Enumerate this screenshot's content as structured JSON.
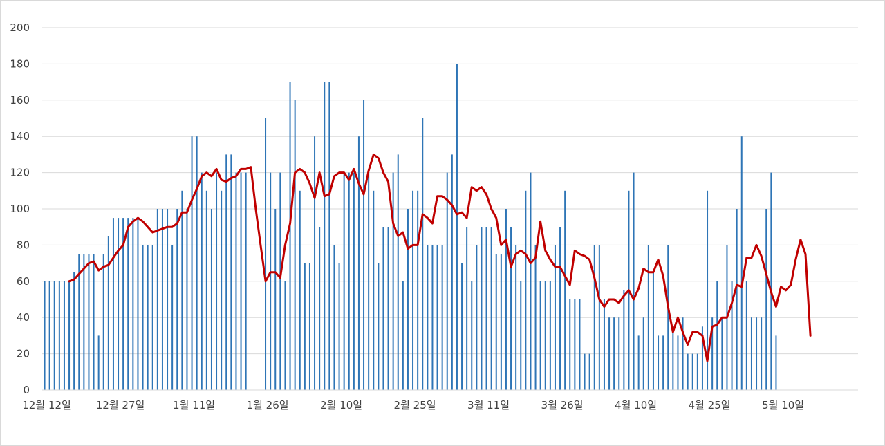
{
  "chart_data": {
    "type": "bar",
    "title": "",
    "xlabel": "",
    "ylabel": "",
    "ylim": [
      0,
      200
    ],
    "yticks": [
      0,
      20,
      40,
      60,
      80,
      100,
      120,
      140,
      160,
      180,
      200
    ],
    "grid": true,
    "legend": "none",
    "x_tick_labels": [
      "12월 12일",
      "12월 27일",
      "1월 11일",
      "1월 26일",
      "2월 10일",
      "2월 25일",
      "3월 11일",
      "3월 26일",
      "4월 10일",
      "4월 25일",
      "5월 10일"
    ],
    "day_count": 156,
    "x_tick_days": [
      0,
      15,
      30,
      45,
      60,
      75,
      90,
      105,
      120,
      135,
      150
    ],
    "series": [
      {
        "kind": "bar",
        "color": "#2e75b6",
        "values": [
          60,
          60,
          60,
          60,
          60,
          60,
          65,
          75,
          75,
          75,
          75,
          30,
          75,
          85,
          95,
          95,
          95,
          95,
          95,
          95,
          80,
          80,
          80,
          100,
          100,
          100,
          80,
          100,
          110,
          100,
          140,
          140,
          120,
          110,
          100,
          120,
          110,
          130,
          130,
          120,
          120,
          120,
          0,
          0,
          0,
          150,
          120,
          100,
          120,
          60,
          170,
          160,
          110,
          70,
          70,
          140,
          90,
          170,
          170,
          80,
          70,
          120,
          120,
          120,
          140,
          160,
          120,
          110,
          70,
          90,
          90,
          120,
          130,
          60,
          100,
          110,
          110,
          150,
          80,
          80,
          80,
          80,
          120,
          130,
          180,
          70,
          90,
          60,
          80,
          90,
          90,
          90,
          75,
          75,
          100,
          90,
          80,
          60,
          110,
          120,
          80,
          60,
          60,
          60,
          80,
          90,
          110,
          50,
          50,
          50,
          20,
          20,
          80,
          80,
          50,
          40,
          40,
          40,
          55,
          110,
          120,
          30,
          40,
          80,
          65,
          30,
          30,
          80,
          35,
          30,
          40,
          20,
          20,
          20,
          35,
          110,
          40,
          60,
          40,
          80,
          60,
          100,
          140,
          60,
          40,
          40,
          40,
          100,
          120,
          30,
          0,
          0,
          0,
          0,
          0,
          0
        ]
      },
      {
        "kind": "line",
        "color": "#c00000",
        "start_day": 5,
        "values": [
          60,
          61,
          64,
          67,
          70,
          71,
          66,
          68,
          69,
          73,
          77,
          80,
          90,
          93,
          95,
          93,
          90,
          87,
          88,
          89,
          90,
          90,
          92,
          98,
          98,
          105,
          111,
          118,
          120,
          118,
          122,
          116,
          115,
          117,
          118,
          122,
          122,
          123,
          100,
          80,
          60,
          65,
          65,
          62,
          80,
          92,
          120,
          122,
          120,
          114,
          106,
          120,
          107,
          108,
          118,
          120,
          120,
          116,
          122,
          114,
          108,
          121,
          130,
          128,
          120,
          115,
          92,
          85,
          87,
          78,
          80,
          80,
          97,
          95,
          92,
          107,
          107,
          105,
          102,
          97,
          98,
          95,
          112,
          110,
          112,
          108,
          100,
          95,
          80,
          83,
          68,
          75,
          77,
          75,
          70,
          73,
          93,
          77,
          72,
          68,
          68,
          63,
          58,
          77,
          75,
          74,
          72,
          62,
          50,
          46,
          50,
          50,
          48,
          52,
          55,
          50,
          56,
          67,
          65,
          65,
          72,
          63,
          46,
          32,
          40,
          32,
          25,
          32,
          32,
          30,
          16,
          35,
          36,
          40,
          40,
          48,
          58,
          57,
          73,
          73,
          80,
          74,
          64,
          54,
          46,
          57,
          55,
          58,
          72,
          83,
          75,
          30
        ]
      }
    ]
  }
}
